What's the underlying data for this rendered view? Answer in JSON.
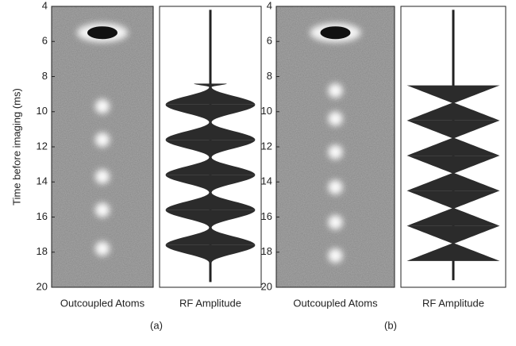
{
  "chart_data": [
    {
      "type": "rf-sequence",
      "panel_label": "(a)",
      "ylabel": "Time before imaging (ms)",
      "ylim": [
        4,
        20
      ],
      "y_inverted": true,
      "yticks": [
        4,
        6,
        8,
        10,
        12,
        14,
        16,
        18,
        20
      ],
      "left_label": "Outcoupled Atoms",
      "right_label": "RF Amplitude",
      "condensate_time": 5.5,
      "atom_times": [
        9.7,
        11.6,
        13.7,
        15.6,
        17.8
      ],
      "stem": [
        4.2,
        19.7
      ],
      "rf_shape": "sine",
      "rf": {
        "time": [
          8.4,
          8.6,
          9.6,
          10.6,
          11.6,
          12.6,
          13.6,
          14.6,
          15.6,
          16.6,
          17.6,
          18.6
        ],
        "amplitude": [
          0.35,
          0,
          1,
          0,
          1,
          0,
          1,
          0,
          1,
          0,
          1,
          0
        ]
      }
    },
    {
      "type": "rf-sequence",
      "panel_label": "(b)",
      "ylim": [
        4,
        20
      ],
      "y_inverted": true,
      "yticks": [
        4,
        6,
        8,
        10,
        12,
        14,
        16,
        18,
        20
      ],
      "left_label": "Outcoupled Atoms",
      "right_label": "RF Amplitude",
      "condensate_time": 5.5,
      "atom_times": [
        8.8,
        10.4,
        12.3,
        14.3,
        16.3,
        18.2
      ],
      "stem": [
        4.2,
        19.6
      ],
      "rf_shape": "linear",
      "rf": {
        "time": [
          8.5,
          9.5,
          10.5,
          11.5,
          12.5,
          13.5,
          14.5,
          15.5,
          16.5,
          17.5,
          18.5
        ],
        "amplitude": [
          1,
          0,
          1,
          0,
          1,
          0,
          1,
          0,
          1,
          0,
          1
        ]
      }
    }
  ]
}
